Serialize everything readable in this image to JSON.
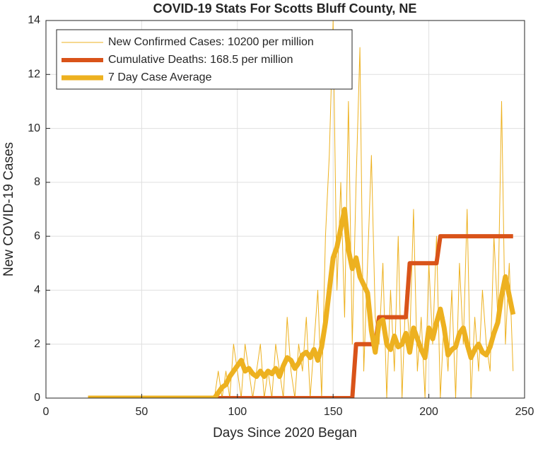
{
  "chart_data": {
    "type": "line",
    "title": "COVID-19 Stats For Scotts Bluff County, NE",
    "xlabel": "Days Since 2020 Began",
    "ylabel": "New COVID-19 Cases",
    "x": [
      22,
      24,
      26,
      28,
      30,
      32,
      34,
      36,
      38,
      40,
      42,
      44,
      46,
      48,
      50,
      52,
      54,
      56,
      58,
      60,
      62,
      64,
      66,
      68,
      70,
      72,
      74,
      76,
      78,
      80,
      82,
      84,
      86,
      88,
      90,
      92,
      94,
      96,
      98,
      100,
      102,
      104,
      106,
      108,
      110,
      112,
      114,
      116,
      118,
      120,
      122,
      124,
      126,
      128,
      130,
      132,
      134,
      136,
      138,
      140,
      142,
      144,
      146,
      148,
      150,
      152,
      154,
      156,
      158,
      160,
      162,
      164,
      166,
      168,
      170,
      172,
      174,
      176,
      178,
      180,
      182,
      184,
      186,
      188,
      190,
      192,
      194,
      196,
      198,
      200,
      202,
      204,
      206,
      208,
      210,
      212,
      214,
      216,
      218,
      220,
      222,
      224,
      226,
      228,
      230,
      232,
      234,
      236,
      238,
      240,
      242,
      244
    ],
    "series": [
      {
        "name": "New Confirmed Cases: 10200 per million",
        "color": "#EDB120",
        "width": 1,
        "values": [
          0,
          0,
          0,
          0,
          0,
          0,
          0,
          0,
          0,
          0,
          0,
          0,
          0,
          0,
          0,
          0,
          0,
          0,
          0,
          0,
          0,
          0,
          0,
          0,
          0,
          0,
          0,
          0,
          0,
          0,
          0,
          0,
          0,
          0,
          1,
          0,
          1,
          0,
          2,
          1,
          0,
          2,
          1,
          0,
          1,
          2,
          0,
          1,
          0,
          2,
          1,
          0,
          3,
          1,
          0,
          2,
          1,
          3,
          0,
          2,
          4,
          0,
          6,
          9,
          14,
          4,
          8,
          3,
          11,
          2,
          8,
          13,
          1,
          5,
          9,
          3,
          2,
          5,
          0,
          4,
          1,
          6,
          0,
          4,
          2,
          7,
          1,
          3,
          0,
          5,
          2,
          6,
          0,
          3,
          1,
          4,
          0,
          5,
          2,
          7,
          0,
          3,
          1,
          4,
          2,
          1,
          6,
          3,
          11,
          2,
          5,
          1
        ]
      },
      {
        "name": "Cumulative Deaths: 168.5 per million",
        "color": "#D95319",
        "width": 6,
        "values": [
          0,
          0,
          0,
          0,
          0,
          0,
          0,
          0,
          0,
          0,
          0,
          0,
          0,
          0,
          0,
          0,
          0,
          0,
          0,
          0,
          0,
          0,
          0,
          0,
          0,
          0,
          0,
          0,
          0,
          0,
          0,
          0,
          0,
          0,
          0,
          0,
          0,
          0,
          0,
          0,
          0,
          0,
          0,
          0,
          0,
          0,
          0,
          0,
          0,
          0,
          0,
          0,
          0,
          0,
          0,
          0,
          0,
          0,
          0,
          0,
          0,
          0,
          0,
          0,
          0,
          0,
          0,
          0,
          0,
          0,
          2,
          2,
          2,
          2,
          2,
          2,
          3,
          3,
          3,
          3,
          3,
          3,
          3,
          3,
          5,
          5,
          5,
          5,
          5,
          5,
          5,
          5,
          6,
          6,
          6,
          6,
          6,
          6,
          6,
          6,
          6,
          6,
          6,
          6,
          6,
          6,
          6,
          6,
          6,
          6,
          6,
          6
        ]
      },
      {
        "name": "7 Day Case Average",
        "color": "#EDB120",
        "width": 7,
        "values": [
          0,
          0,
          0,
          0,
          0,
          0,
          0,
          0,
          0,
          0,
          0,
          0,
          0,
          0,
          0,
          0,
          0,
          0,
          0,
          0,
          0,
          0,
          0,
          0,
          0,
          0,
          0,
          0,
          0,
          0,
          0,
          0,
          0,
          0,
          0.2,
          0.4,
          0.5,
          0.8,
          1.0,
          1.2,
          1.4,
          1.0,
          1.1,
          0.9,
          0.8,
          1.0,
          0.8,
          1.0,
          0.9,
          1.1,
          0.8,
          1.2,
          1.5,
          1.4,
          1.1,
          1.3,
          1.6,
          1.7,
          1.5,
          1.8,
          1.4,
          1.9,
          2.8,
          4.0,
          5.2,
          5.6,
          6.3,
          7.0,
          5.5,
          4.8,
          5.2,
          4.5,
          4.2,
          3.9,
          2.5,
          1.7,
          2.8,
          2.9,
          2.0,
          1.8,
          2.3,
          1.9,
          2.0,
          2.4,
          1.7,
          2.6,
          2.2,
          1.8,
          1.5,
          2.6,
          2.2,
          2.8,
          3.3,
          2.6,
          1.6,
          1.8,
          1.9,
          2.4,
          2.6,
          2.0,
          1.5,
          1.8,
          2.0,
          1.7,
          1.6,
          1.9,
          2.4,
          2.8,
          3.8,
          4.5,
          3.8,
          3.1
        ]
      }
    ],
    "xlim": [
      0,
      250
    ],
    "xticks": [
      0,
      50,
      100,
      150,
      200,
      250
    ],
    "ylim": [
      0,
      14
    ],
    "yticks": [
      0,
      2,
      4,
      6,
      8,
      10,
      12,
      14
    ],
    "grid": true,
    "legend": "top-left"
  }
}
